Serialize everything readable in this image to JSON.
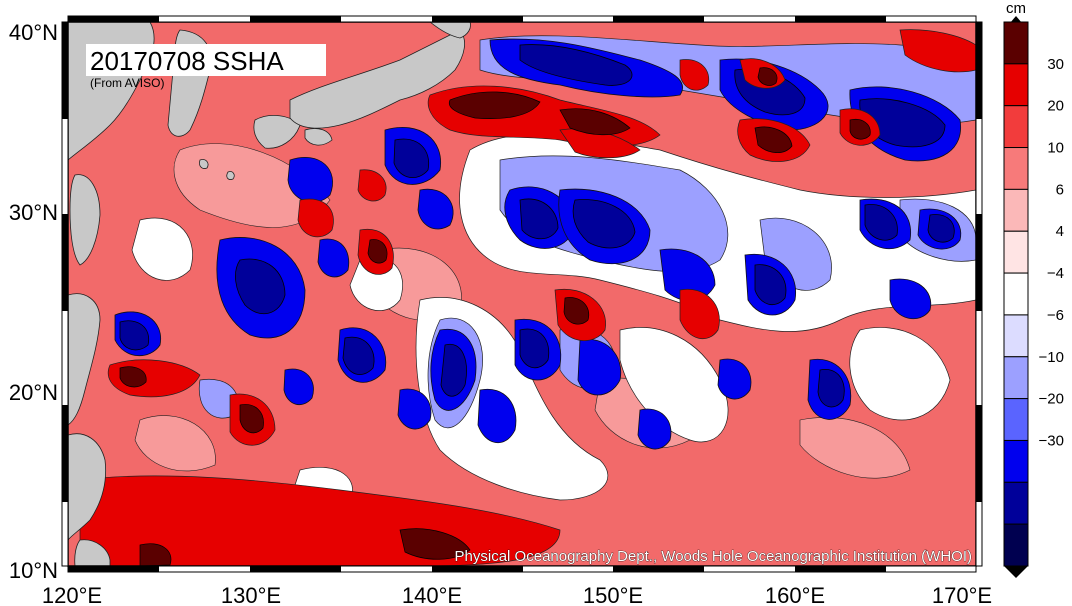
{
  "map": {
    "title": "20170708 SSHA",
    "subtitle": "(From AVISO)",
    "credit": "Physical Oceanography Dept., Woods Hole Oceanographic Institution (WHOI)",
    "lon_labels": [
      "120°E",
      "130°E",
      "140°E",
      "150°E",
      "160°E",
      "170°E"
    ],
    "lat_labels": [
      "40°N",
      "30°N",
      "20°N",
      "10°N"
    ],
    "land_color": "#c8c8c8",
    "background_anomaly_color": "#f26a6a"
  },
  "colorbar": {
    "unit": "cm",
    "ticks": [
      "30",
      "20",
      "10",
      "6",
      "4",
      "−4",
      "−6",
      "−10",
      "−20",
      "−30"
    ],
    "colors": [
      "#5a0000",
      "#e60000",
      "#f23c3c",
      "#f77a7a",
      "#fbb8b8",
      "#ffe4e4",
      "#ffffff",
      "#dcdcff",
      "#9ca0ff",
      "#5a64ff",
      "#0000ee",
      "#00009a",
      "#000050"
    ]
  }
}
